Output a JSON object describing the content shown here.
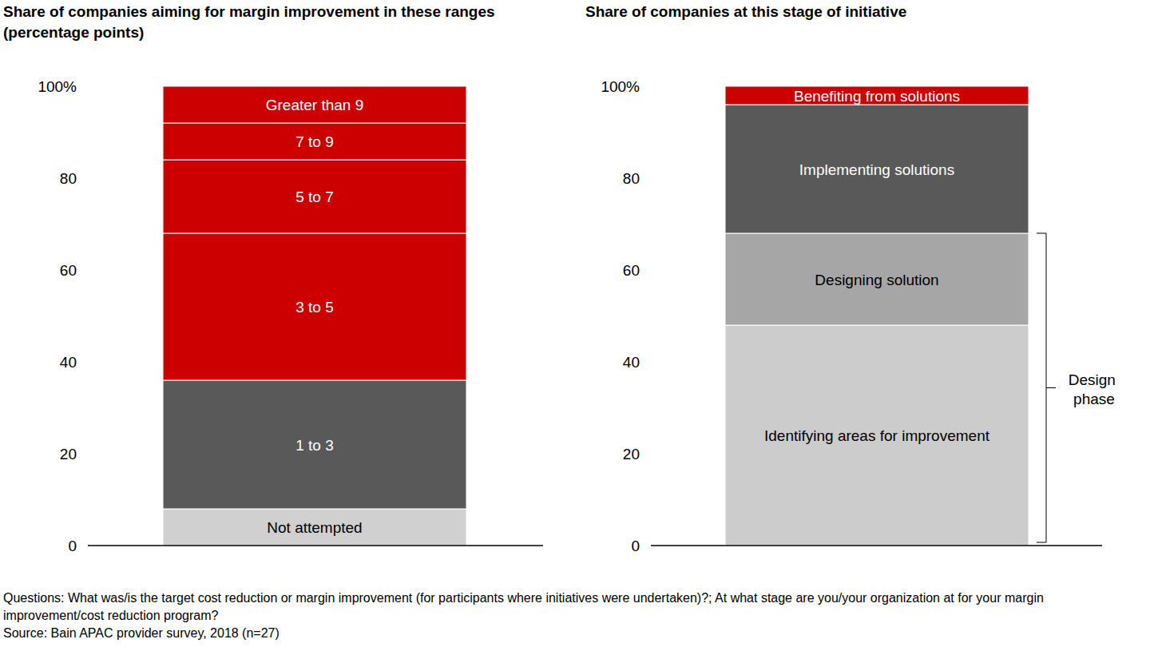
{
  "chart_data": [
    {
      "type": "bar",
      "stacked": true,
      "title": "Share of companies aiming for margin improvement in these ranges (percentage points)",
      "categories": [
        null
      ],
      "series": [
        {
          "name": "Not attempted",
          "color": "#d0d0d0",
          "values": [
            8
          ]
        },
        {
          "name": "1 to 3",
          "color": "#595959",
          "values": [
            28
          ]
        },
        {
          "name": "3 to 5",
          "color": "#cc0000",
          "values": [
            32
          ]
        },
        {
          "name": "5 to 7",
          "color": "#cc0000",
          "values": [
            16
          ]
        },
        {
          "name": "7 to 9",
          "color": "#cc0000",
          "values": [
            8
          ]
        },
        {
          "name": "Greater than 9",
          "color": "#cc0000",
          "values": [
            8
          ]
        }
      ],
      "ylim": [
        0,
        100
      ],
      "yticks": [
        0,
        20,
        40,
        60,
        80,
        {
          "value": 100,
          "label": "100%"
        }
      ],
      "grid": false,
      "tick_labels": "y"
    },
    {
      "type": "bar",
      "stacked": true,
      "title": "Share of companies at this stage of initiative",
      "categories": [
        null
      ],
      "series": [
        {
          "name": "Identifying areas for improvement",
          "color": "#cccccc",
          "values": [
            48
          ]
        },
        {
          "name": "Designing solution",
          "color": "#a6a6a6",
          "values": [
            20
          ]
        },
        {
          "name": "Implementing solutions",
          "color": "#595959",
          "values": [
            28
          ]
        },
        {
          "name": "Benefiting from solutions",
          "color": "#cc0000",
          "values": [
            4
          ]
        }
      ],
      "ylim": [
        0,
        100
      ],
      "yticks": [
        0,
        20,
        40,
        60,
        80,
        {
          "value": 100,
          "label": "100%"
        }
      ],
      "grid": false,
      "tick_labels": "y",
      "annotations": [
        {
          "text": "Design phase"
        }
      ]
    }
  ],
  "footer": {
    "questions": "Questions: What was/is the target cost reduction or margin improvement (for participants where initiatives were undertaken)?; At what stage are you/your organization at for your margin improvement/cost reduction program?",
    "source": "Source: Bain APAC provider survey, 2018 (n=27)"
  }
}
